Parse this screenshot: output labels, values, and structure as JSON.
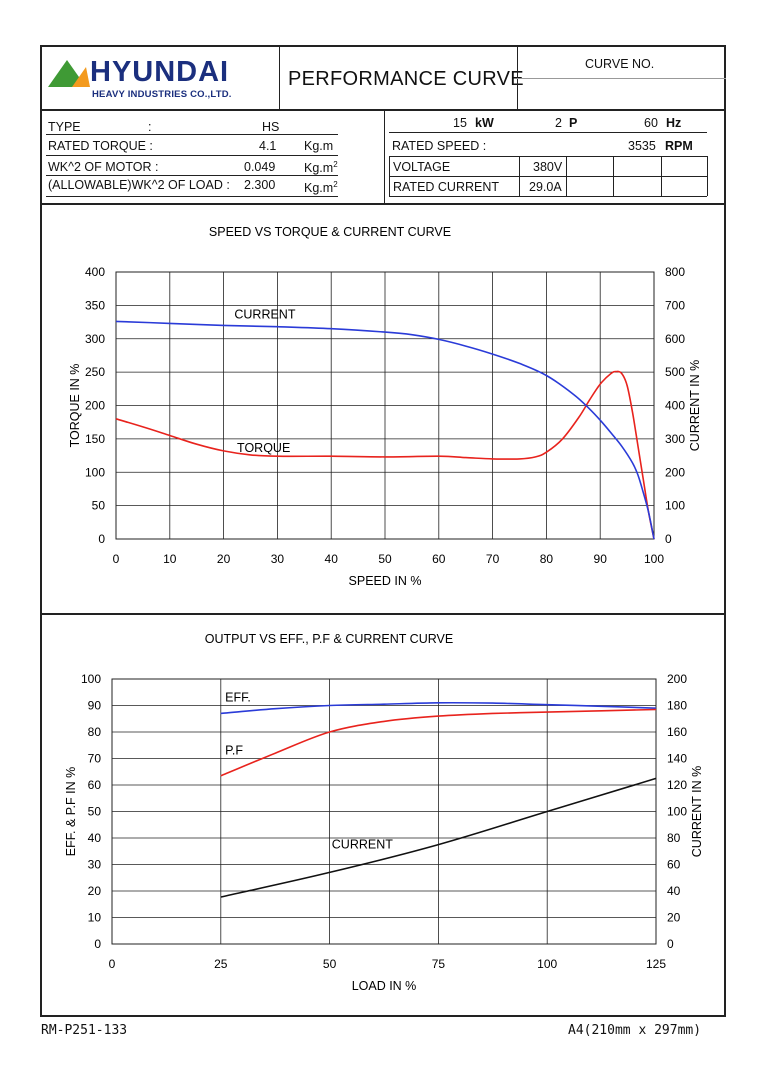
{
  "header": {
    "logo": {
      "word": "HYUNDAI",
      "sub": "HEAVY INDUSTRIES CO.,LTD.",
      "icon": "triangle-logo-icon"
    },
    "title": "PERFORMANCE CURVE",
    "curve_no_label": "CURVE NO.",
    "curve_no_value": ""
  },
  "specs_left": {
    "type_label": "TYPE",
    "type_colon": ":",
    "type_value": "HS",
    "torque_label": "RATED TORQUE :",
    "torque_value": "4.1",
    "torque_unit": "Kg.m",
    "wk_motor_label": "WK^2 OF MOTOR :",
    "wk_motor_value": "0.049",
    "wk_motor_unit": "Kg.m",
    "wk_load_label": "(ALLOWABLE)WK^2 OF LOAD :",
    "wk_load_value": "2.300",
    "wk_load_unit": "Kg.m",
    "unit_sup": "2"
  },
  "specs_right": {
    "power_value": "15",
    "power_unit": "kW",
    "poles_value": "2",
    "poles_unit": "P",
    "freq_value": "60",
    "freq_unit": "Hz",
    "speed_label": "RATED SPEED :",
    "speed_value": "3535",
    "speed_unit": "RPM",
    "voltage_label": "VOLTAGE",
    "voltage_value": "380V",
    "current_label": "RATED CURRENT",
    "current_value": "29.0A"
  },
  "footer": {
    "doc_no": "RM-P251-133",
    "paper": "A4(210mm x 297mm)"
  },
  "colors": {
    "torque": "#e8231d",
    "current_blue": "#2a3bd8",
    "eff": "#2a3bd8",
    "pf": "#e8231d",
    "current_black": "#111111",
    "grid": "#222222",
    "logo_blue": "#1b2f7e",
    "logo_green": "#3f9a35"
  },
  "chart_data": [
    {
      "type": "line",
      "title": "SPEED VS TORQUE & CURRENT CURVE",
      "xlabel": "SPEED IN %",
      "ylabel": "TORQUE IN %",
      "y2label": "CURRENT IN %",
      "xlim": [
        0,
        100
      ],
      "ylim": [
        0,
        400
      ],
      "y2lim": [
        0,
        800
      ],
      "xticks": [
        0,
        10,
        20,
        30,
        40,
        50,
        60,
        70,
        80,
        90,
        100
      ],
      "yticks": [
        0,
        50,
        100,
        150,
        200,
        250,
        300,
        350,
        400
      ],
      "y2ticks": [
        0,
        100,
        200,
        300,
        400,
        500,
        600,
        700,
        800
      ],
      "grid": true,
      "series": [
        {
          "name": "TORQUE",
          "axis": "left",
          "color": "#e8231d",
          "x": [
            0,
            5,
            10,
            15,
            20,
            25,
            30,
            40,
            50,
            60,
            65,
            70,
            75,
            78,
            80,
            83,
            86,
            88,
            90,
            92,
            93,
            94,
            95,
            96,
            97,
            98,
            99,
            100
          ],
          "y": [
            180,
            168,
            155,
            142,
            132,
            126,
            124,
            124,
            123,
            124,
            122,
            120,
            120,
            123,
            130,
            150,
            182,
            208,
            232,
            248,
            251,
            248,
            230,
            190,
            140,
            90,
            40,
            0
          ]
        },
        {
          "name": "CURRENT",
          "axis": "right",
          "color": "#2a3bd8",
          "x": [
            0,
            10,
            20,
            30,
            40,
            50,
            55,
            60,
            65,
            70,
            75,
            80,
            85,
            88,
            90,
            92,
            94,
            96,
            97,
            98,
            99,
            100
          ],
          "y": [
            652,
            646,
            640,
            636,
            630,
            620,
            612,
            598,
            578,
            554,
            526,
            490,
            434,
            390,
            356,
            318,
            278,
            228,
            192,
            140,
            80,
            0
          ]
        }
      ],
      "annotations": [
        "CURRENT",
        "TORQUE"
      ]
    },
    {
      "type": "line",
      "title": "OUTPUT VS EFF., P.F & CURRENT CURVE",
      "xlabel": "LOAD IN %",
      "ylabel": "EFF. & P.F IN %",
      "y2label": "CURRENT IN %",
      "xlim": [
        0,
        125
      ],
      "ylim": [
        0,
        100
      ],
      "y2lim": [
        0,
        200
      ],
      "xticks": [
        0,
        25,
        50,
        75,
        100,
        125
      ],
      "yticks": [
        0,
        10,
        20,
        30,
        40,
        50,
        60,
        70,
        80,
        90,
        100
      ],
      "y2ticks": [
        0,
        20,
        40,
        60,
        80,
        100,
        120,
        140,
        160,
        180,
        200
      ],
      "grid": true,
      "series": [
        {
          "name": "EFF.",
          "axis": "left",
          "color": "#2a3bd8",
          "x": [
            25,
            37.5,
            50,
            62.5,
            75,
            87.5,
            100,
            112.5,
            125
          ],
          "y": [
            87,
            88.8,
            90,
            90.5,
            91,
            90.9,
            90.3,
            89.7,
            89
          ]
        },
        {
          "name": "P.F",
          "axis": "left",
          "color": "#e8231d",
          "x": [
            25,
            37.5,
            50,
            62.5,
            75,
            87.5,
            100,
            112.5,
            125
          ],
          "y": [
            63.5,
            72,
            80,
            84,
            86,
            87,
            87.5,
            88,
            88.5
          ]
        },
        {
          "name": "CURRENT",
          "axis": "right",
          "color": "#111111",
          "x": [
            25,
            50,
            75,
            100,
            125
          ],
          "y": [
            35.5,
            54,
            75,
            100,
            125
          ]
        }
      ],
      "annotations": [
        "EFF.",
        "P.F",
        "CURRENT"
      ]
    }
  ]
}
